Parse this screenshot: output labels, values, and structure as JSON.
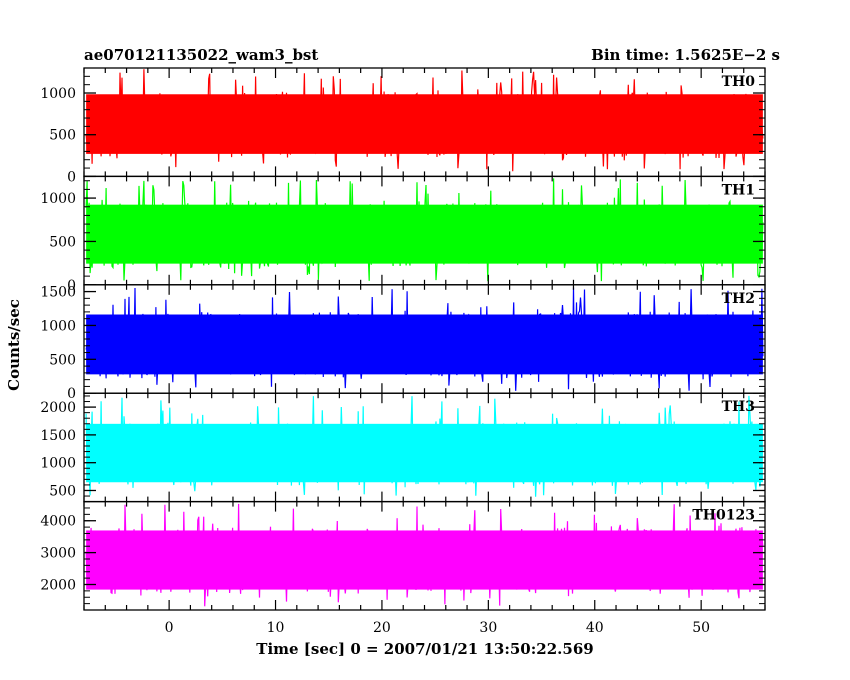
{
  "chart_data": {
    "type": "line",
    "title": "ae070121135022_wam3_bst",
    "subtitle": "Bin time: 1.5625E−2 s",
    "xlabel": "Time [sec] 0 = 2007/01/21 13:50:22.569",
    "ylabel": "Counts/sec",
    "xlim": [
      -8,
      56
    ],
    "xticks": [
      0,
      10,
      20,
      30,
      40,
      50
    ],
    "panels": [
      {
        "name": "TH0",
        "color": "#ff0000",
        "ylim": [
          0,
          1300
        ],
        "yticks": [
          0,
          500,
          1000
        ],
        "mean": 600,
        "low": 50,
        "high": 1300
      },
      {
        "name": "TH1",
        "color": "#00ff00",
        "ylim": [
          0,
          1250
        ],
        "yticks": [
          0,
          500,
          1000
        ],
        "mean": 550,
        "low": 40,
        "high": 1230
      },
      {
        "name": "TH2",
        "color": "#0000ff",
        "ylim": [
          0,
          1600
        ],
        "yticks": [
          0,
          500,
          1000,
          1500
        ],
        "mean": 650,
        "low": 30,
        "high": 1580
      },
      {
        "name": "TH3",
        "color": "#00ffff",
        "ylim": [
          300,
          2250
        ],
        "yticks": [
          500,
          1000,
          1500,
          2000
        ],
        "mean": 1050,
        "low": 380,
        "high": 2230
      },
      {
        "name": "TH0123",
        "color": "#ff00ff",
        "ylim": [
          1200,
          4600
        ],
        "yticks": [
          2000,
          3000,
          4000
        ],
        "mean": 2650,
        "low": 1300,
        "high": 4550
      }
    ]
  }
}
